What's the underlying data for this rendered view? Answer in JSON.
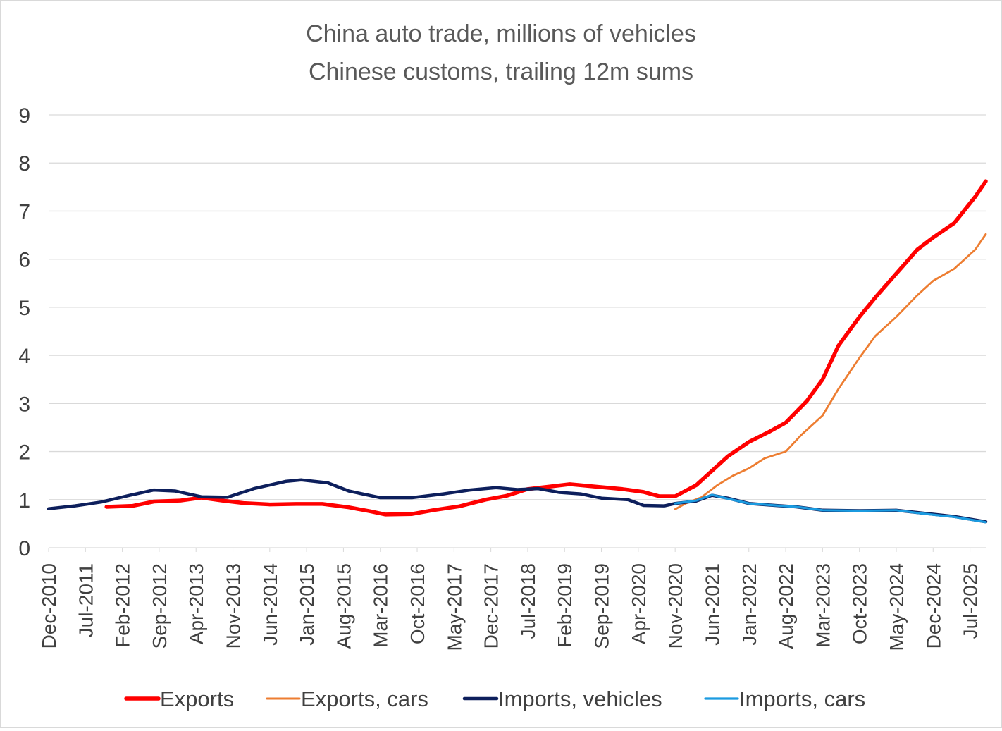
{
  "chart_data": {
    "type": "line",
    "title": "China auto trade, millions of vehicles",
    "subtitle": "Chinese customs, trailing 12m sums",
    "xlabel": "",
    "ylabel": "",
    "x_range": [
      "2010-12",
      "2025-10"
    ],
    "ylim": [
      0,
      9
    ],
    "y_ticks": [
      0,
      1,
      2,
      3,
      4,
      5,
      6,
      7,
      8,
      9
    ],
    "x_tick_labels": [
      {
        "date": "2010-12",
        "label": "Dec-2010"
      },
      {
        "date": "2011-07",
        "label": "Jul-2011"
      },
      {
        "date": "2012-02",
        "label": "Feb-2012"
      },
      {
        "date": "2012-09",
        "label": "Sep-2012"
      },
      {
        "date": "2013-04",
        "label": "Apr-2013"
      },
      {
        "date": "2013-11",
        "label": "Nov-2013"
      },
      {
        "date": "2014-06",
        "label": "Jun-2014"
      },
      {
        "date": "2015-01",
        "label": "Jan-2015"
      },
      {
        "date": "2015-08",
        "label": "Aug-2015"
      },
      {
        "date": "2016-03",
        "label": "Mar-2016"
      },
      {
        "date": "2016-10",
        "label": "Oct-2016"
      },
      {
        "date": "2017-05",
        "label": "May-2017"
      },
      {
        "date": "2017-12",
        "label": "Dec-2017"
      },
      {
        "date": "2018-07",
        "label": "Jul-2018"
      },
      {
        "date": "2019-02",
        "label": "Feb-2019"
      },
      {
        "date": "2019-09",
        "label": "Sep-2019"
      },
      {
        "date": "2020-04",
        "label": "Apr-2020"
      },
      {
        "date": "2020-11",
        "label": "Nov-2020"
      },
      {
        "date": "2021-06",
        "label": "Jun-2021"
      },
      {
        "date": "2022-01",
        "label": "Jan-2022"
      },
      {
        "date": "2022-08",
        "label": "Aug-2022"
      },
      {
        "date": "2023-03",
        "label": "Mar-2023"
      },
      {
        "date": "2023-10",
        "label": "Oct-2023"
      },
      {
        "date": "2024-05",
        "label": "May-2024"
      },
      {
        "date": "2024-12",
        "label": "Dec-2024"
      },
      {
        "date": "2025-07",
        "label": "Jul-2025"
      }
    ],
    "grid": "horizontal",
    "legend_position": "bottom",
    "series": [
      {
        "name": "Exports",
        "color": "#ff0000",
        "points": [
          [
            "2011-11",
            0.85
          ],
          [
            "2012-04",
            0.87
          ],
          [
            "2012-08",
            0.96
          ],
          [
            "2013-01",
            0.98
          ],
          [
            "2013-05",
            1.04
          ],
          [
            "2013-09",
            0.98
          ],
          [
            "2014-01",
            0.93
          ],
          [
            "2014-06",
            0.9
          ],
          [
            "2014-11",
            0.91
          ],
          [
            "2015-04",
            0.91
          ],
          [
            "2015-09",
            0.84
          ],
          [
            "2016-01",
            0.76
          ],
          [
            "2016-04",
            0.69
          ],
          [
            "2016-09",
            0.7
          ],
          [
            "2017-01",
            0.78
          ],
          [
            "2017-06",
            0.86
          ],
          [
            "2017-11",
            1.0
          ],
          [
            "2018-03",
            1.08
          ],
          [
            "2018-07",
            1.22
          ],
          [
            "2018-11",
            1.27
          ],
          [
            "2019-03",
            1.32
          ],
          [
            "2019-08",
            1.27
          ],
          [
            "2020-01",
            1.22
          ],
          [
            "2020-05",
            1.16
          ],
          [
            "2020-08",
            1.07
          ],
          [
            "2020-11",
            1.07
          ],
          [
            "2021-03",
            1.3
          ],
          [
            "2021-06",
            1.6
          ],
          [
            "2021-09",
            1.9
          ],
          [
            "2022-01",
            2.2
          ],
          [
            "2022-05",
            2.42
          ],
          [
            "2022-08",
            2.6
          ],
          [
            "2022-12",
            3.05
          ],
          [
            "2023-03",
            3.5
          ],
          [
            "2023-06",
            4.2
          ],
          [
            "2023-10",
            4.8
          ],
          [
            "2024-01",
            5.2
          ],
          [
            "2024-05",
            5.7
          ],
          [
            "2024-09",
            6.2
          ],
          [
            "2024-12",
            6.45
          ],
          [
            "2025-04",
            6.75
          ],
          [
            "2025-08",
            7.3
          ],
          [
            "2025-10",
            7.62
          ]
        ]
      },
      {
        "name": "Exports, cars",
        "color": "#ed7d31",
        "points": [
          [
            "2020-11",
            0.8
          ],
          [
            "2021-01",
            0.92
          ],
          [
            "2021-04",
            1.05
          ],
          [
            "2021-07",
            1.3
          ],
          [
            "2021-10",
            1.5
          ],
          [
            "2022-01",
            1.65
          ],
          [
            "2022-04",
            1.86
          ],
          [
            "2022-08",
            2.0
          ],
          [
            "2022-11",
            2.35
          ],
          [
            "2023-03",
            2.75
          ],
          [
            "2023-06",
            3.3
          ],
          [
            "2023-10",
            3.95
          ],
          [
            "2024-01",
            4.4
          ],
          [
            "2024-05",
            4.8
          ],
          [
            "2024-09",
            5.25
          ],
          [
            "2024-12",
            5.55
          ],
          [
            "2025-04",
            5.8
          ],
          [
            "2025-08",
            6.2
          ],
          [
            "2025-10",
            6.52
          ]
        ]
      },
      {
        "name": "Imports, vehicles",
        "color": "#0d1f5c",
        "points": [
          [
            "2010-12",
            0.81
          ],
          [
            "2011-05",
            0.87
          ],
          [
            "2011-10",
            0.95
          ],
          [
            "2012-03",
            1.08
          ],
          [
            "2012-08",
            1.2
          ],
          [
            "2012-12",
            1.18
          ],
          [
            "2013-05",
            1.06
          ],
          [
            "2013-10",
            1.05
          ],
          [
            "2014-03",
            1.23
          ],
          [
            "2014-09",
            1.38
          ],
          [
            "2014-12",
            1.41
          ],
          [
            "2015-05",
            1.35
          ],
          [
            "2015-09",
            1.18
          ],
          [
            "2016-03",
            1.04
          ],
          [
            "2016-09",
            1.04
          ],
          [
            "2017-03",
            1.12
          ],
          [
            "2017-08",
            1.2
          ],
          [
            "2018-01",
            1.25
          ],
          [
            "2018-05",
            1.21
          ],
          [
            "2018-09",
            1.23
          ],
          [
            "2019-01",
            1.15
          ],
          [
            "2019-05",
            1.12
          ],
          [
            "2019-09",
            1.03
          ],
          [
            "2020-02",
            1.0
          ],
          [
            "2020-05",
            0.88
          ],
          [
            "2020-09",
            0.87
          ],
          [
            "2020-11",
            0.92
          ],
          [
            "2021-03",
            0.97
          ],
          [
            "2021-06",
            1.09
          ],
          [
            "2021-09",
            1.03
          ],
          [
            "2022-01",
            0.92
          ],
          [
            "2022-06",
            0.88
          ],
          [
            "2022-10",
            0.85
          ],
          [
            "2023-03",
            0.78
          ],
          [
            "2023-10",
            0.77
          ],
          [
            "2024-05",
            0.78
          ],
          [
            "2024-10",
            0.72
          ],
          [
            "2025-04",
            0.65
          ],
          [
            "2025-10",
            0.54
          ]
        ]
      },
      {
        "name": "Imports, cars",
        "color": "#1b9be0",
        "points": [
          [
            "2020-11",
            0.92
          ],
          [
            "2021-03",
            0.98
          ],
          [
            "2021-06",
            1.1
          ],
          [
            "2021-09",
            1.02
          ],
          [
            "2022-01",
            0.92
          ],
          [
            "2022-06",
            0.88
          ],
          [
            "2022-10",
            0.85
          ],
          [
            "2023-03",
            0.78
          ],
          [
            "2023-10",
            0.77
          ],
          [
            "2024-05",
            0.78
          ],
          [
            "2024-10",
            0.71
          ],
          [
            "2025-04",
            0.64
          ],
          [
            "2025-10",
            0.53
          ]
        ]
      }
    ]
  }
}
